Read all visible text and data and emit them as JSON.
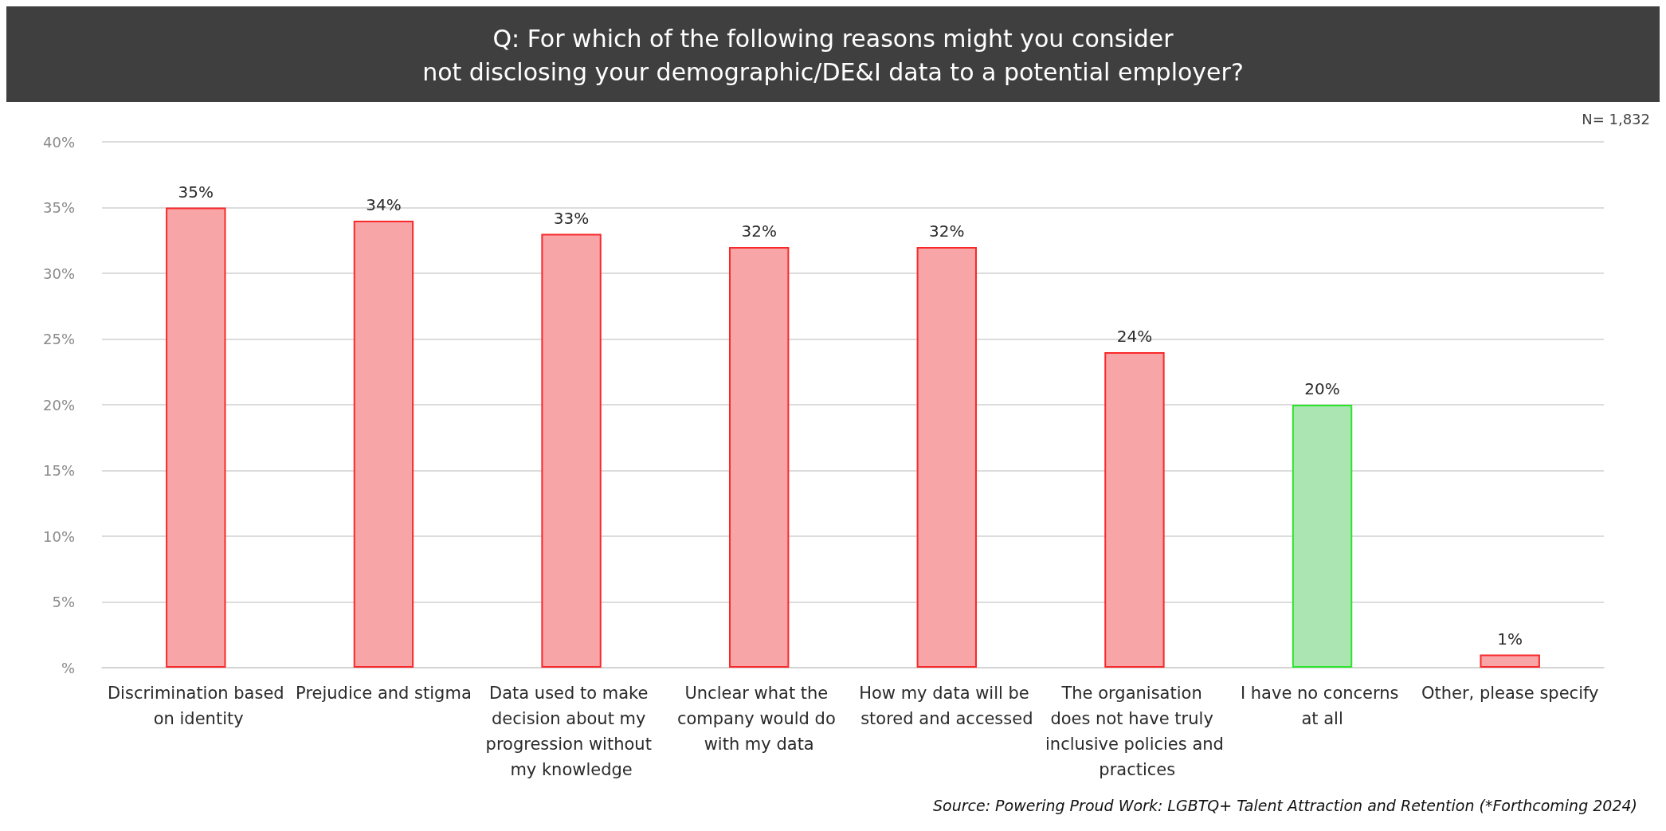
{
  "chart_data": {
    "type": "bar",
    "title": "Q: For which of the following reasons might you consider\nnot disclosing your demographic/DE&I data to a potential employer?",
    "categories": [
      "Discrimination based on identity",
      "Prejudice and stigma",
      "Data used to make decision about my progression without my knowledge",
      "Unclear what the company would do with my data",
      "How my data will be stored and accessed",
      "The organisation does not have truly inclusive policies and practices",
      "I have no concerns at all",
      "Other, please specify"
    ],
    "values": [
      35,
      34,
      33,
      32,
      32,
      24,
      20,
      1
    ],
    "value_labels": [
      "35%",
      "34%",
      "33%",
      "32%",
      "32%",
      "24%",
      "20%",
      "1%"
    ],
    "colors": [
      "#f8a5a8",
      "#f8a5a8",
      "#f8a5a8",
      "#f8a5a8",
      "#f8a5a8",
      "#f8a5a8",
      "#abe5b2",
      "#f8a5a8"
    ],
    "ylim": [
      0,
      40
    ],
    "yticks": [
      {
        "value": 0,
        "label": "%"
      },
      {
        "value": 5,
        "label": "5%"
      },
      {
        "value": 10,
        "label": "10%"
      },
      {
        "value": 15,
        "label": "15%"
      },
      {
        "value": 20,
        "label": "20%"
      },
      {
        "value": 25,
        "label": "25%"
      },
      {
        "value": 30,
        "label": "30%"
      },
      {
        "value": 35,
        "label": "35%"
      },
      {
        "value": 40,
        "label": "40%"
      }
    ],
    "grid": "y",
    "annotations": [
      "N= 1,832",
      "Source: Powering Proud Work: LGBTQ+ Talent Attraction and Retention (*Forthcoming 2024)"
    ]
  }
}
